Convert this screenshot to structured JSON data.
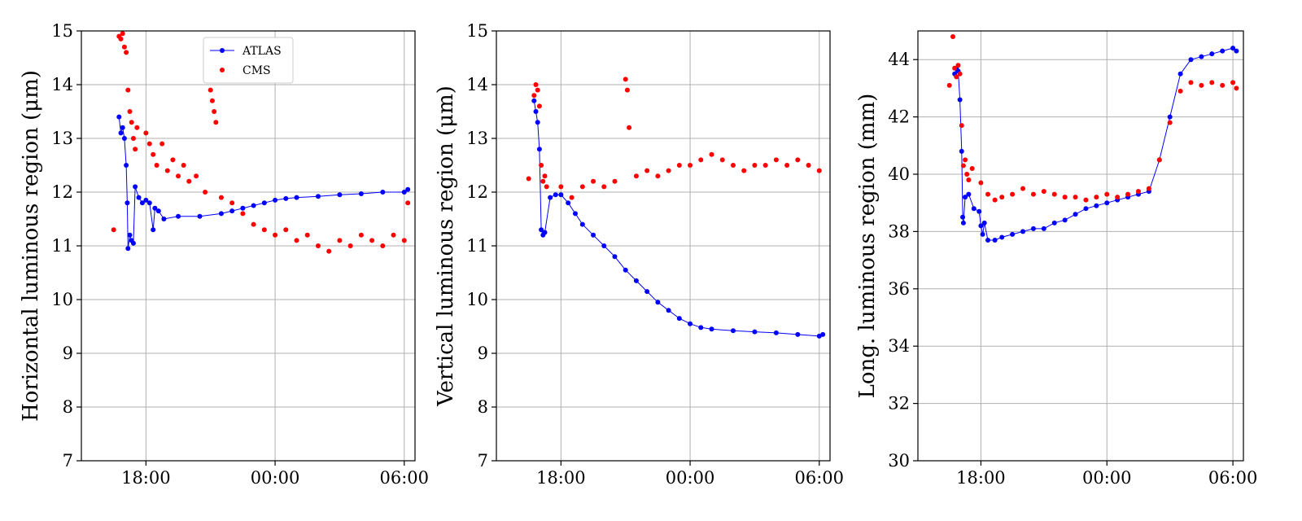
{
  "chart_data": [
    {
      "type": "scatter",
      "xlabel": "",
      "ylabel": "Horizontal luminous region (μm)",
      "xlim": [
        "15:00",
        "06:30"
      ],
      "ylim": [
        7,
        15
      ],
      "x_ticks": [
        "18:00",
        "00:00",
        "06:00"
      ],
      "y_ticks": [
        7,
        8,
        9,
        10,
        11,
        12,
        13,
        14,
        15
      ],
      "grid": true,
      "legend": {
        "placement": "top-center",
        "entries": [
          "ATLAS",
          "CMS"
        ]
      },
      "series": [
        {
          "name": "ATLAS",
          "color": "#0000ff",
          "marker": "circle",
          "line": true,
          "points": [
            [
              "16:45",
              13.4
            ],
            [
              "16:50",
              13.1
            ],
            [
              "16:55",
              13.2
            ],
            [
              "17:00",
              13.0
            ],
            [
              "17:05",
              12.5
            ],
            [
              "17:08",
              11.8
            ],
            [
              "17:10",
              10.95
            ],
            [
              "17:15",
              11.2
            ],
            [
              "17:20",
              11.1
            ],
            [
              "17:25",
              11.05
            ],
            [
              "17:30",
              12.1
            ],
            [
              "17:40",
              11.9
            ],
            [
              "17:50",
              11.8
            ],
            [
              "18:00",
              11.85
            ],
            [
              "18:10",
              11.8
            ],
            [
              "18:20",
              11.3
            ],
            [
              "18:25",
              11.7
            ],
            [
              "18:35",
              11.65
            ],
            [
              "18:50",
              11.5
            ],
            [
              "19:30",
              11.55
            ],
            [
              "20:30",
              11.55
            ],
            [
              "21:30",
              11.6
            ],
            [
              "22:00",
              11.65
            ],
            [
              "22:30",
              11.7
            ],
            [
              "23:00",
              11.75
            ],
            [
              "23:30",
              11.8
            ],
            [
              "00:00",
              11.85
            ],
            [
              "00:30",
              11.88
            ],
            [
              "01:00",
              11.9
            ],
            [
              "02:00",
              11.92
            ],
            [
              "03:00",
              11.95
            ],
            [
              "04:00",
              11.97
            ],
            [
              "05:00",
              12.0
            ],
            [
              "06:00",
              12.0
            ],
            [
              "06:10",
              12.05
            ]
          ]
        },
        {
          "name": "CMS",
          "color": "#ff0000",
          "marker": "circle",
          "line": false,
          "points": [
            [
              "16:30",
              11.3
            ],
            [
              "16:45",
              14.9
            ],
            [
              "16:50",
              14.85
            ],
            [
              "16:55",
              14.95
            ],
            [
              "17:00",
              14.7
            ],
            [
              "17:05",
              14.6
            ],
            [
              "17:10",
              13.9
            ],
            [
              "17:15",
              13.5
            ],
            [
              "17:20",
              13.3
            ],
            [
              "17:25",
              13.0
            ],
            [
              "17:30",
              12.8
            ],
            [
              "17:35",
              13.2
            ],
            [
              "18:00",
              13.1
            ],
            [
              "18:10",
              12.9
            ],
            [
              "18:20",
              12.7
            ],
            [
              "18:30",
              12.5
            ],
            [
              "18:45",
              12.9
            ],
            [
              "19:00",
              12.4
            ],
            [
              "19:15",
              12.6
            ],
            [
              "19:30",
              12.3
            ],
            [
              "19:45",
              12.5
            ],
            [
              "20:00",
              12.2
            ],
            [
              "20:20",
              12.3
            ],
            [
              "20:45",
              12.0
            ],
            [
              "21:00",
              13.9
            ],
            [
              "21:05",
              13.7
            ],
            [
              "21:10",
              13.5
            ],
            [
              "21:15",
              13.3
            ],
            [
              "21:30",
              11.9
            ],
            [
              "22:00",
              11.8
            ],
            [
              "22:30",
              11.6
            ],
            [
              "23:00",
              11.4
            ],
            [
              "23:30",
              11.3
            ],
            [
              "00:00",
              11.2
            ],
            [
              "00:30",
              11.3
            ],
            [
              "01:00",
              11.1
            ],
            [
              "01:30",
              11.2
            ],
            [
              "02:00",
              11.0
            ],
            [
              "02:30",
              10.9
            ],
            [
              "03:00",
              11.1
            ],
            [
              "03:30",
              11.0
            ],
            [
              "04:00",
              11.2
            ],
            [
              "04:30",
              11.1
            ],
            [
              "05:00",
              11.0
            ],
            [
              "05:30",
              11.2
            ],
            [
              "06:00",
              11.1
            ],
            [
              "06:10",
              11.8
            ]
          ]
        }
      ]
    },
    {
      "type": "scatter",
      "xlabel": "",
      "ylabel": "Vertical luminous region (μm)",
      "xlim": [
        "15:00",
        "06:30"
      ],
      "ylim": [
        7,
        15
      ],
      "x_ticks": [
        "18:00",
        "00:00",
        "06:00"
      ],
      "y_ticks": [
        7,
        8,
        9,
        10,
        11,
        12,
        13,
        14,
        15
      ],
      "grid": true,
      "legend": null,
      "series": [
        {
          "name": "ATLAS",
          "color": "#0000ff",
          "marker": "circle",
          "line": true,
          "points": [
            [
              "16:45",
              13.7
            ],
            [
              "16:50",
              13.5
            ],
            [
              "16:55",
              13.3
            ],
            [
              "17:00",
              12.8
            ],
            [
              "17:05",
              11.3
            ],
            [
              "17:10",
              11.2
            ],
            [
              "17:15",
              11.25
            ],
            [
              "17:30",
              11.9
            ],
            [
              "17:45",
              11.95
            ],
            [
              "18:00",
              11.95
            ],
            [
              "18:20",
              11.8
            ],
            [
              "18:40",
              11.6
            ],
            [
              "19:00",
              11.4
            ],
            [
              "19:30",
              11.2
            ],
            [
              "20:00",
              11.0
            ],
            [
              "20:30",
              10.8
            ],
            [
              "21:00",
              10.55
            ],
            [
              "21:30",
              10.35
            ],
            [
              "22:00",
              10.15
            ],
            [
              "22:30",
              9.95
            ],
            [
              "23:00",
              9.8
            ],
            [
              "23:30",
              9.65
            ],
            [
              "00:00",
              9.55
            ],
            [
              "00:30",
              9.48
            ],
            [
              "01:00",
              9.45
            ],
            [
              "02:00",
              9.42
            ],
            [
              "03:00",
              9.4
            ],
            [
              "04:00",
              9.38
            ],
            [
              "05:00",
              9.35
            ],
            [
              "06:00",
              9.32
            ],
            [
              "06:10",
              9.35
            ]
          ]
        },
        {
          "name": "CMS",
          "color": "#ff0000",
          "marker": "circle",
          "line": false,
          "points": [
            [
              "16:30",
              12.25
            ],
            [
              "16:45",
              13.8
            ],
            [
              "16:50",
              14.0
            ],
            [
              "16:55",
              13.9
            ],
            [
              "17:00",
              13.6
            ],
            [
              "17:05",
              12.5
            ],
            [
              "17:10",
              12.2
            ],
            [
              "17:15",
              12.3
            ],
            [
              "17:20",
              12.1
            ],
            [
              "18:00",
              12.1
            ],
            [
              "18:30",
              11.9
            ],
            [
              "19:00",
              12.1
            ],
            [
              "19:30",
              12.2
            ],
            [
              "20:00",
              12.1
            ],
            [
              "20:30",
              12.2
            ],
            [
              "21:00",
              14.1
            ],
            [
              "21:05",
              13.9
            ],
            [
              "21:10",
              13.2
            ],
            [
              "21:30",
              12.3
            ],
            [
              "22:00",
              12.4
            ],
            [
              "22:30",
              12.3
            ],
            [
              "23:00",
              12.4
            ],
            [
              "23:30",
              12.5
            ],
            [
              "00:00",
              12.5
            ],
            [
              "00:30",
              12.6
            ],
            [
              "01:00",
              12.7
            ],
            [
              "01:30",
              12.6
            ],
            [
              "02:00",
              12.5
            ],
            [
              "02:30",
              12.4
            ],
            [
              "03:00",
              12.5
            ],
            [
              "03:30",
              12.5
            ],
            [
              "04:00",
              12.6
            ],
            [
              "04:30",
              12.5
            ],
            [
              "05:00",
              12.6
            ],
            [
              "05:30",
              12.5
            ],
            [
              "06:00",
              12.4
            ]
          ]
        }
      ]
    },
    {
      "type": "scatter",
      "xlabel": "",
      "ylabel": "Long. luminous region (mm)",
      "xlim": [
        "15:00",
        "06:30"
      ],
      "ylim": [
        30,
        45
      ],
      "x_ticks": [
        "18:00",
        "00:00",
        "06:00"
      ],
      "y_ticks": [
        30,
        32,
        34,
        36,
        38,
        40,
        42,
        44
      ],
      "grid": true,
      "legend": null,
      "series": [
        {
          "name": "ATLAS",
          "color": "#0000ff",
          "marker": "circle",
          "line": true,
          "points": [
            [
              "16:45",
              43.5
            ],
            [
              "16:50",
              43.7
            ],
            [
              "16:55",
              43.6
            ],
            [
              "17:00",
              42.6
            ],
            [
              "17:05",
              40.8
            ],
            [
              "17:08",
              38.5
            ],
            [
              "17:10",
              38.3
            ],
            [
              "17:15",
              39.2
            ],
            [
              "17:25",
              39.3
            ],
            [
              "17:40",
              38.8
            ],
            [
              "17:55",
              38.7
            ],
            [
              "18:00",
              38.2
            ],
            [
              "18:05",
              37.9
            ],
            [
              "18:10",
              38.3
            ],
            [
              "18:20",
              37.7
            ],
            [
              "18:40",
              37.7
            ],
            [
              "19:00",
              37.8
            ],
            [
              "19:30",
              37.9
            ],
            [
              "20:00",
              38.0
            ],
            [
              "20:30",
              38.1
            ],
            [
              "21:00",
              38.1
            ],
            [
              "21:30",
              38.3
            ],
            [
              "22:00",
              38.4
            ],
            [
              "22:30",
              38.6
            ],
            [
              "23:00",
              38.8
            ],
            [
              "23:30",
              38.9
            ],
            [
              "00:00",
              39.0
            ],
            [
              "00:30",
              39.1
            ],
            [
              "01:00",
              39.2
            ],
            [
              "01:30",
              39.3
            ],
            [
              "02:00",
              39.4
            ],
            [
              "02:30",
              40.5
            ],
            [
              "03:00",
              42.0
            ],
            [
              "03:30",
              43.5
            ],
            [
              "04:00",
              44.0
            ],
            [
              "04:30",
              44.1
            ],
            [
              "05:00",
              44.2
            ],
            [
              "05:30",
              44.3
            ],
            [
              "06:00",
              44.4
            ],
            [
              "06:10",
              44.3
            ]
          ]
        },
        {
          "name": "CMS",
          "color": "#ff0000",
          "marker": "circle",
          "line": false,
          "points": [
            [
              "16:30",
              43.1
            ],
            [
              "16:40",
              44.8
            ],
            [
              "16:45",
              43.7
            ],
            [
              "16:50",
              43.4
            ],
            [
              "16:55",
              43.8
            ],
            [
              "17:00",
              43.5
            ],
            [
              "17:05",
              41.7
            ],
            [
              "17:10",
              40.3
            ],
            [
              "17:15",
              40.5
            ],
            [
              "17:20",
              40.0
            ],
            [
              "17:25",
              39.8
            ],
            [
              "17:35",
              40.2
            ],
            [
              "18:00",
              39.7
            ],
            [
              "18:20",
              39.3
            ],
            [
              "18:40",
              39.1
            ],
            [
              "19:00",
              39.2
            ],
            [
              "19:30",
              39.3
            ],
            [
              "20:00",
              39.5
            ],
            [
              "20:30",
              39.3
            ],
            [
              "21:00",
              39.4
            ],
            [
              "21:30",
              39.3
            ],
            [
              "22:00",
              39.2
            ],
            [
              "22:30",
              39.2
            ],
            [
              "23:00",
              39.1
            ],
            [
              "23:30",
              39.2
            ],
            [
              "00:00",
              39.3
            ],
            [
              "00:30",
              39.2
            ],
            [
              "01:00",
              39.3
            ],
            [
              "01:30",
              39.4
            ],
            [
              "02:00",
              39.5
            ],
            [
              "02:30",
              40.5
            ],
            [
              "03:00",
              41.8
            ],
            [
              "03:30",
              42.9
            ],
            [
              "04:00",
              43.2
            ],
            [
              "04:30",
              43.1
            ],
            [
              "05:00",
              43.2
            ],
            [
              "05:30",
              43.1
            ],
            [
              "06:00",
              43.2
            ],
            [
              "06:10",
              43.0
            ]
          ]
        }
      ]
    }
  ]
}
